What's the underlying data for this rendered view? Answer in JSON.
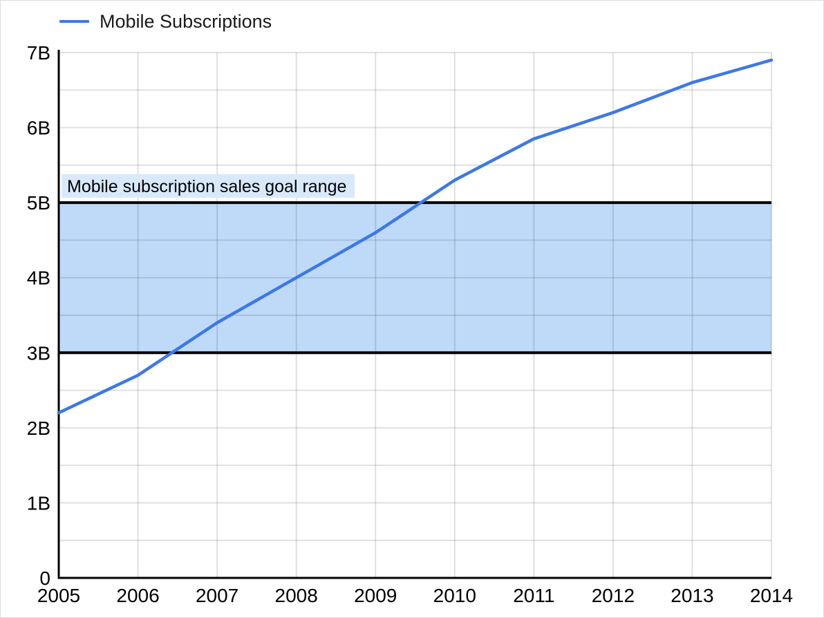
{
  "legend": {
    "label": "Mobile Subscriptions"
  },
  "chart_data": {
    "type": "line",
    "title": "",
    "x": [
      2005,
      2006,
      2007,
      2008,
      2009,
      2010,
      2011,
      2012,
      2013,
      2014
    ],
    "series": [
      {
        "name": "Mobile Subscriptions",
        "color": "#3C78E8",
        "unit": "billions",
        "values": [
          2.2,
          2.7,
          3.4,
          4.0,
          4.6,
          5.3,
          5.85,
          6.2,
          6.6,
          6.9
        ]
      }
    ],
    "x_axis": {
      "tick_labels": [
        "2005",
        "2006",
        "2007",
        "2008",
        "2009",
        "2010",
        "2011",
        "2012",
        "2013",
        "2014"
      ]
    },
    "y_axis": {
      "min": 0,
      "max": 7,
      "tick_step": 1,
      "minor_grid_step": 0.5,
      "tick_labels": [
        "0",
        "1B",
        "2B",
        "3B",
        "4B",
        "5B",
        "6B",
        "7B"
      ]
    },
    "band": {
      "from": 3,
      "to": 5,
      "label": "Mobile subscription sales goal range",
      "fill": "#BEDAF8",
      "label_bg": "#D9E9FB",
      "border_color": "#000000"
    },
    "grid": true,
    "legend_position": "top-left",
    "colors": {
      "grid": "rgba(0,0,0,0.12)",
      "axis": "#000000",
      "text": "#000000"
    }
  }
}
